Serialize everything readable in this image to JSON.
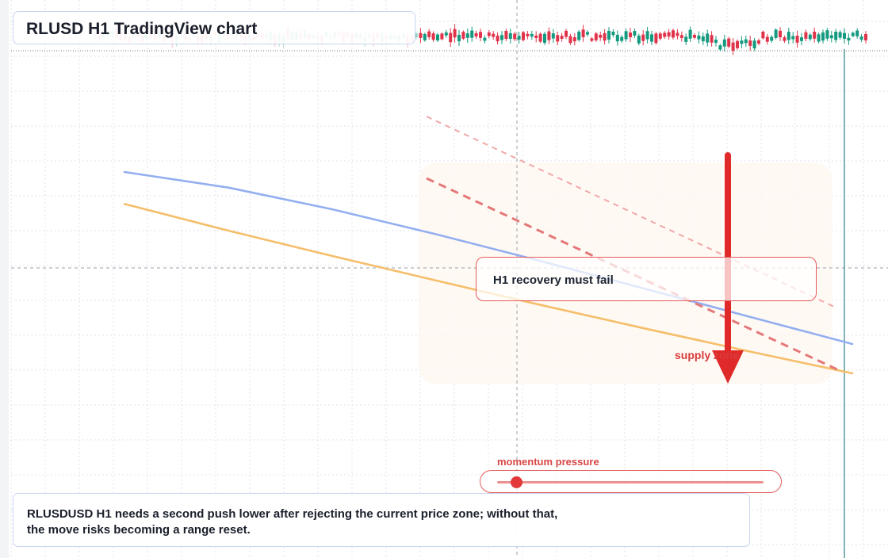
{
  "header": {
    "title": "RLUSD H1 TradingView chart"
  },
  "chart_data": {
    "type": "line",
    "title": "RLUSD H1 TradingView chart",
    "xlabel": "",
    "ylabel": "",
    "grid": true,
    "series": [
      {
        "values": [
          0.0,
          12.3,
          24.0,
          35.3,
          46.5,
          57.3,
          67.8,
          78.0
        ]
      },
      {
        "values": [
          -14.7,
          -7.5,
          2.5,
          14.0,
          26.3,
          39.0,
          51.8,
          64.5
        ]
      }
    ],
    "annotations": {
      "projection_lines": 2,
      "down_arrow": true,
      "zone_highlight": true
    }
  },
  "annotations": {
    "callout": "H1 recovery must fail",
    "zone_label": "supply zone",
    "momentum": {
      "label": "momentum pressure",
      "level": 0.07
    }
  },
  "note": {
    "lines": [
      "RLUSDUSD H1 needs a second push lower after rejecting the current price zone; without that,",
      "the move risks becoming a range reset."
    ]
  },
  "colors": {
    "orange_series": "#f5be6a",
    "blue_series": "#93aff0",
    "bearish": "#e02a2a",
    "grid": "#dfe3ea",
    "candle_up": "#139a7f",
    "candle_down": "#e0344b"
  }
}
